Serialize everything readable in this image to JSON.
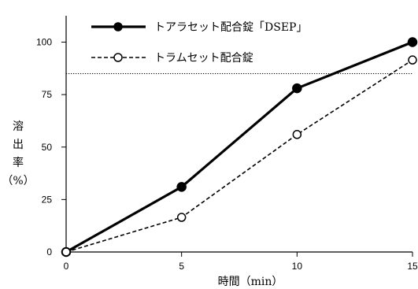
{
  "chart_data": {
    "type": "line",
    "title": "",
    "xlabel": "時間（min）",
    "ylabel": [
      "溶",
      "出",
      "率",
      "（%）"
    ],
    "x": [
      0,
      5,
      10,
      15
    ],
    "xticks": [
      "0",
      "5",
      "10",
      "15"
    ],
    "yticks": [
      "0",
      "25",
      "50",
      "75",
      "100"
    ],
    "xlim": [
      0,
      15
    ],
    "ylim": [
      0,
      115
    ],
    "grid": false,
    "legend_position": "top-left",
    "reference_line": {
      "y": 85,
      "style": "dotted"
    },
    "series": [
      {
        "name": "トアラセット配合錠「DSEP」",
        "values": [
          0,
          31,
          78,
          100
        ],
        "line": "solid",
        "marker": "filled-circle",
        "color": "#000000"
      },
      {
        "name": "トラムセット配合錠",
        "values": [
          0,
          16.5,
          56,
          91.5
        ],
        "line": "dashed",
        "marker": "open-circle",
        "color": "#000000"
      }
    ]
  }
}
